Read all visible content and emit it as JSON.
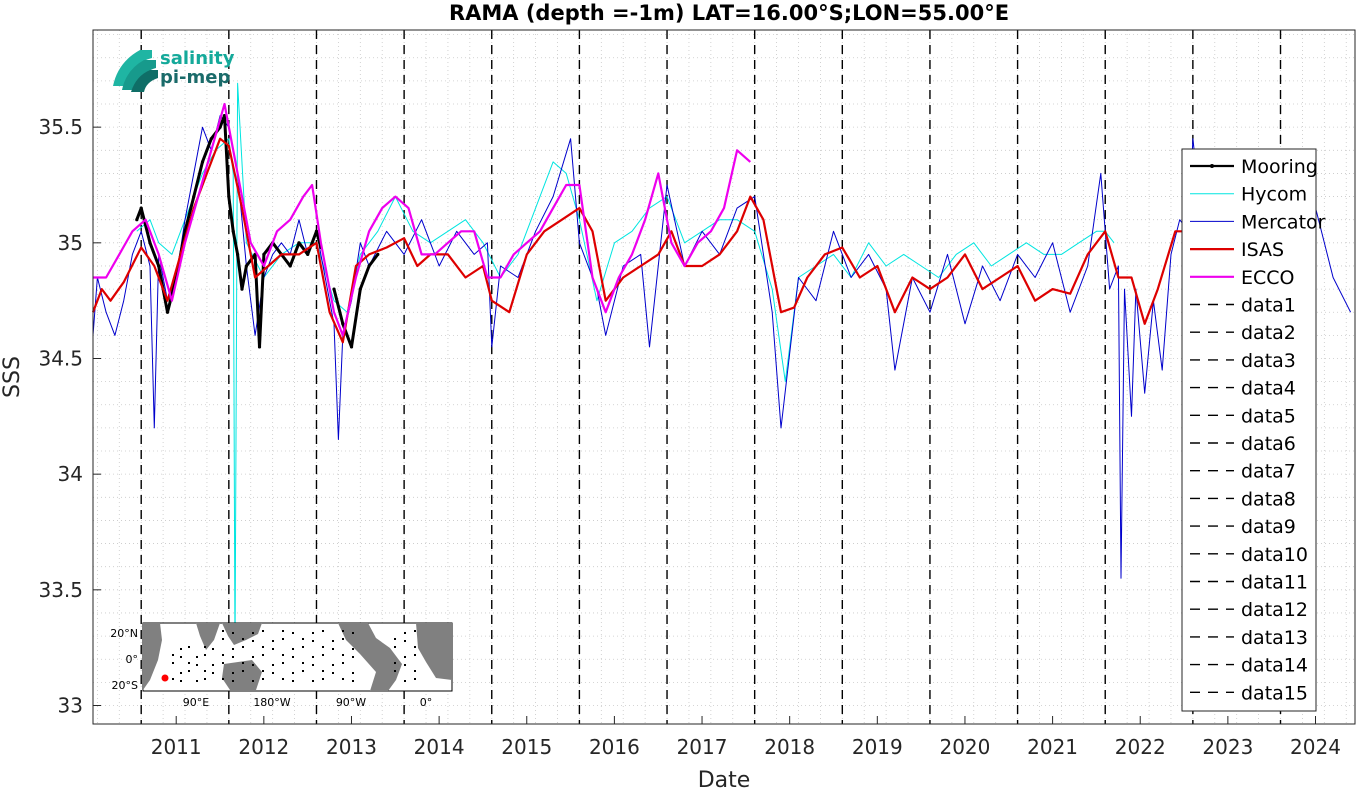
{
  "chart_data": {
    "type": "line",
    "title": "RAMA (depth =-1m) LAT=16.00°S;LON=55.00°E",
    "xlabel": "Date",
    "ylabel": "SSS",
    "xlim": [
      2010.45,
      2024.85
    ],
    "ylim": [
      32.92,
      35.92
    ],
    "x_ticks": [
      2011,
      2012,
      2013,
      2014,
      2015,
      2016,
      2017,
      2018,
      2019,
      2020,
      2021,
      2022,
      2023,
      2024
    ],
    "x_tick_labels": [
      "2011",
      "2012",
      "2013",
      "2014",
      "2015",
      "2016",
      "2017",
      "2018",
      "2019",
      "2020",
      "2021",
      "2022",
      "2023",
      "2024"
    ],
    "y_ticks": [
      33,
      33.5,
      34,
      34.5,
      35,
      35.5
    ],
    "y_tick_labels": [
      "33",
      "33.5",
      "34",
      "34.5",
      "35",
      "35.5"
    ],
    "grid": "dotted minor grid",
    "legend_position": "right",
    "vertical_dashed_lines_x": [
      2011,
      2012,
      2013,
      2014,
      2015,
      2016,
      2017,
      2018,
      2019,
      2020,
      2021,
      2022,
      2023,
      2024
    ],
    "series": [
      {
        "name": "Mooring",
        "color": "#000000",
        "style": "thick-line-with-dots",
        "x": [
          2010.95,
          2011.0,
          2011.1,
          2011.2,
          2011.3,
          2011.4,
          2011.5,
          2011.6,
          2011.7,
          2011.8,
          2011.9,
          2011.95,
          2012.0,
          2012.05,
          2012.1,
          2012.15,
          2012.2,
          2012.3,
          2012.35,
          2012.4,
          2012.5,
          2012.6,
          2012.7,
          2012.8,
          2012.9,
          2013.0,
          2013.05
        ],
        "y": [
          35.1,
          35.15,
          35.0,
          34.9,
          34.7,
          34.85,
          35.05,
          35.2,
          35.35,
          35.45,
          35.5,
          35.55,
          35.2,
          35.05,
          34.95,
          34.8,
          34.9,
          34.95,
          34.55,
          34.95,
          35.0,
          34.95,
          34.9,
          35.0,
          34.95,
          35.05,
          34.98
        ]
      },
      {
        "name": "Mooring",
        "color": "#000000",
        "style": "thick-line-with-dots",
        "x": [
          2013.2,
          2013.3,
          2013.4,
          2013.5,
          2013.6,
          2013.7
        ],
        "y": [
          34.8,
          34.65,
          34.55,
          34.8,
          34.9,
          34.95
        ]
      },
      {
        "name": "Hycom",
        "color": "#00e5e0",
        "style": "thin-line",
        "x": [
          2010.95,
          2011.1,
          2011.2,
          2011.35,
          2011.5,
          2011.7,
          2011.85,
          2012.0,
          2012.05,
          2012.07,
          2012.1,
          2012.2,
          2012.4,
          2012.6,
          2012.8,
          2013.0,
          2013.2,
          2013.35,
          2013.5,
          2013.7,
          2013.9,
          2014.1,
          2014.3,
          2014.5,
          2014.7,
          2014.9,
          2015.1,
          2015.3,
          2015.5,
          2015.7,
          2015.85,
          2016.0,
          2016.2,
          2016.4,
          2016.6,
          2016.8,
          2017.0,
          2017.2,
          2017.4,
          2017.6,
          2017.8,
          2018.0,
          2018.2,
          2018.35,
          2018.5,
          2018.7,
          2018.9,
          2019.1,
          2019.3,
          2019.5,
          2019.7,
          2019.9,
          2020.1,
          2020.3,
          2020.5,
          2020.7,
          2020.9,
          2021.1,
          2021.3,
          2021.5,
          2021.7,
          2021.9,
          2022.0,
          2022.1
        ],
        "y": [
          35.05,
          35.1,
          35.0,
          34.95,
          35.1,
          35.3,
          35.4,
          35.45,
          35.3,
          33.2,
          35.69,
          35.0,
          34.85,
          34.95,
          35.0,
          35.0,
          34.75,
          34.7,
          34.95,
          35.05,
          35.2,
          35.05,
          35.0,
          35.05,
          35.1,
          35.0,
          34.85,
          34.95,
          35.15,
          35.35,
          35.3,
          35.1,
          34.75,
          35.0,
          35.05,
          35.15,
          35.2,
          35.0,
          35.05,
          35.1,
          35.1,
          35.05,
          34.8,
          34.4,
          34.85,
          34.9,
          34.95,
          34.85,
          35.0,
          34.9,
          34.95,
          34.9,
          34.85,
          34.95,
          35.0,
          34.9,
          34.95,
          35.0,
          34.95,
          34.95,
          35.0,
          35.05,
          35.05,
          35.0
        ]
      },
      {
        "name": "Mercator",
        "color": "#0000cc",
        "style": "thin-line",
        "x": [
          2010.45,
          2010.5,
          2010.6,
          2010.7,
          2010.8,
          2010.9,
          2011.0,
          2011.1,
          2011.15,
          2011.2,
          2011.3,
          2011.4,
          2011.5,
          2011.6,
          2011.7,
          2011.8,
          2011.9,
          2012.0,
          2012.1,
          2012.2,
          2012.3,
          2012.4,
          2012.5,
          2012.6,
          2012.7,
          2012.8,
          2012.9,
          2013.0,
          2013.1,
          2013.2,
          2013.25,
          2013.3,
          2013.4,
          2013.5,
          2013.6,
          2013.8,
          2014.0,
          2014.2,
          2014.4,
          2014.6,
          2014.8,
          2014.95,
          2015.0,
          2015.1,
          2015.3,
          2015.5,
          2015.7,
          2015.9,
          2016.0,
          2016.2,
          2016.3,
          2016.5,
          2016.7,
          2016.8,
          2017.0,
          2017.2,
          2017.4,
          2017.6,
          2017.8,
          2018.0,
          2018.2,
          2018.3,
          2018.5,
          2018.7,
          2018.9,
          2019.1,
          2019.3,
          2019.5,
          2019.6,
          2019.8,
          2020.0,
          2020.2,
          2020.4,
          2020.6,
          2020.8,
          2021.0,
          2021.2,
          2021.4,
          2021.6,
          2021.8,
          2021.95,
          2022.05,
          2022.15,
          2022.18,
          2022.22,
          2022.3,
          2022.35,
          2022.45,
          2022.55,
          2022.65,
          2022.75,
          2022.85,
          2022.95,
          2023.0,
          2023.1,
          2023.3,
          2023.5,
          2023.7,
          2023.9,
          2024.0,
          2024.2,
          2024.4,
          2024.6,
          2024.8
        ],
        "y": [
          34.6,
          34.85,
          34.7,
          34.6,
          34.75,
          34.95,
          35.05,
          34.9,
          34.2,
          34.95,
          34.75,
          34.85,
          35.1,
          35.3,
          35.5,
          35.4,
          35.55,
          35.5,
          35.3,
          34.9,
          34.6,
          34.85,
          34.95,
          35.0,
          34.95,
          35.1,
          34.95,
          35.05,
          34.85,
          34.65,
          34.15,
          34.6,
          34.75,
          35.0,
          34.9,
          35.05,
          34.95,
          35.1,
          34.9,
          35.05,
          34.95,
          35.0,
          34.55,
          34.9,
          34.85,
          35.05,
          35.2,
          35.45,
          35.0,
          34.8,
          34.6,
          34.9,
          34.95,
          34.55,
          35.25,
          34.9,
          35.05,
          34.95,
          35.15,
          35.2,
          34.7,
          34.2,
          34.85,
          34.75,
          35.05,
          34.85,
          34.95,
          34.8,
          34.45,
          34.85,
          34.7,
          34.95,
          34.65,
          34.9,
          34.75,
          34.95,
          34.85,
          35.0,
          34.7,
          34.9,
          35.3,
          34.8,
          34.9,
          33.55,
          34.8,
          34.25,
          34.8,
          34.35,
          34.75,
          34.45,
          34.95,
          35.1,
          35.05,
          35.45,
          35.1,
          35.2,
          34.9,
          35.15,
          34.85,
          35.4,
          34.95,
          35.15,
          34.85,
          34.7
        ]
      },
      {
        "name": "ISAS",
        "color": "#dd0000",
        "style": "thick-line",
        "x": [
          2010.45,
          2010.55,
          2010.65,
          2010.8,
          2011.0,
          2011.15,
          2011.3,
          2011.45,
          2011.6,
          2011.75,
          2011.9,
          2012.0,
          2012.15,
          2012.3,
          2012.45,
          2012.6,
          2012.8,
          2013.0,
          2013.15,
          2013.3,
          2013.45,
          2013.6,
          2013.8,
          2014.0,
          2014.15,
          2014.3,
          2014.5,
          2014.7,
          2014.9,
          2015.0,
          2015.2,
          2015.4,
          2015.6,
          2015.8,
          2016.0,
          2016.15,
          2016.3,
          2016.5,
          2016.7,
          2016.9,
          2017.05,
          2017.2,
          2017.4,
          2017.6,
          2017.8,
          2017.95,
          2018.1,
          2018.3,
          2018.45,
          2018.6,
          2018.8,
          2019.0,
          2019.2,
          2019.4,
          2019.6,
          2019.8,
          2020.0,
          2020.2,
          2020.4,
          2020.6,
          2020.8,
          2021.0,
          2021.2,
          2021.4,
          2021.6,
          2021.8,
          2022.0,
          2022.15,
          2022.3,
          2022.45,
          2022.6,
          2022.8,
          2022.95
        ],
        "y": [
          34.7,
          34.8,
          34.75,
          34.83,
          34.98,
          34.9,
          34.75,
          34.95,
          35.15,
          35.3,
          35.45,
          35.42,
          35.15,
          34.85,
          34.9,
          34.95,
          34.95,
          35.0,
          34.7,
          34.57,
          34.9,
          34.95,
          34.98,
          35.02,
          34.9,
          34.95,
          34.95,
          34.85,
          34.9,
          34.75,
          34.7,
          34.95,
          35.05,
          35.1,
          35.15,
          35.05,
          34.75,
          34.85,
          34.9,
          34.95,
          35.05,
          34.9,
          34.9,
          34.95,
          35.05,
          35.2,
          35.1,
          34.7,
          34.72,
          34.85,
          34.95,
          34.98,
          34.85,
          34.9,
          34.7,
          34.85,
          34.8,
          34.85,
          34.95,
          34.8,
          34.85,
          34.9,
          34.75,
          34.8,
          34.78,
          34.95,
          35.05,
          34.85,
          34.85,
          34.65,
          34.8,
          35.05,
          35.05
        ]
      },
      {
        "name": "ECCO",
        "color": "#ee00ee",
        "style": "thick-line",
        "x": [
          2010.45,
          2010.6,
          2010.75,
          2010.9,
          2011.05,
          2011.2,
          2011.35,
          2011.5,
          2011.65,
          2011.8,
          2011.95,
          2012.1,
          2012.25,
          2012.4,
          2012.55,
          2012.7,
          2012.85,
          2012.95,
          2013.05,
          2013.2,
          2013.3,
          2013.45,
          2013.6,
          2013.75,
          2013.9,
          2014.05,
          2014.2,
          2014.35,
          2014.5,
          2014.65,
          2014.8,
          2014.95,
          2015.1,
          2015.25,
          2015.4,
          2015.55,
          2015.7,
          2015.85,
          2016.0,
          2016.15,
          2016.3,
          2016.45,
          2016.6,
          2016.75,
          2016.9,
          2017.05,
          2017.2,
          2017.35,
          2017.5,
          2017.65,
          2017.8,
          2017.95
        ],
        "y": [
          34.85,
          34.85,
          34.95,
          35.05,
          35.1,
          34.95,
          34.75,
          35.0,
          35.2,
          35.4,
          35.6,
          35.3,
          35.0,
          34.9,
          35.05,
          35.1,
          35.2,
          35.25,
          35.0,
          34.7,
          34.6,
          34.85,
          35.05,
          35.15,
          35.2,
          35.15,
          34.95,
          34.95,
          35.0,
          35.05,
          35.05,
          34.85,
          34.85,
          34.95,
          35.0,
          35.05,
          35.15,
          35.25,
          35.25,
          34.85,
          34.7,
          34.85,
          34.95,
          35.1,
          35.3,
          35.0,
          34.9,
          35.0,
          35.05,
          35.15,
          35.4,
          35.35
        ]
      }
    ],
    "legend": [
      "Mooring",
      "Hycom",
      "Mercator",
      "ISAS",
      "ECCO",
      "data1",
      "data2",
      "data3",
      "data4",
      "data5",
      "data6",
      "data7",
      "data8",
      "data9",
      "data10",
      "data11",
      "data12",
      "data13",
      "data14",
      "data15"
    ],
    "logo": {
      "line1": "salinity",
      "line2": "pi-mep"
    },
    "inset_map": {
      "y_labels": [
        "20°N",
        "0°",
        "20°S"
      ],
      "x_labels": [
        "90°E",
        "180°W",
        "90°W",
        "0°"
      ],
      "marker_color": "#ff0000"
    }
  }
}
